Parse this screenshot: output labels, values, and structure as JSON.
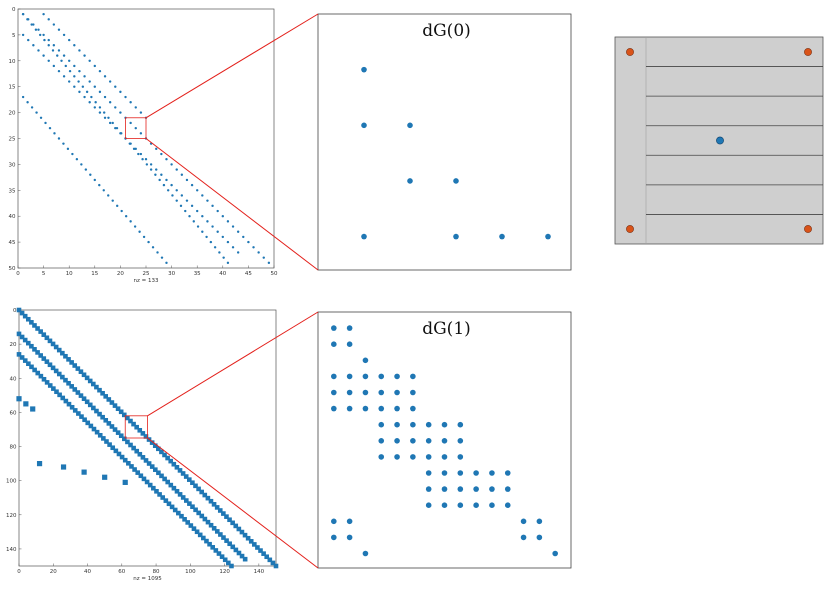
{
  "colors": {
    "marker": "#1f77b4",
    "connector": "#e3201b",
    "element_fill": "#cfcfcf",
    "element_node": "#d95319"
  },
  "spy_plots": [
    {
      "xlabel": "nz = 133",
      "xlim": [
        0,
        50
      ],
      "ylim": [
        0,
        50
      ],
      "x_ticks": [
        "0",
        "5",
        "10",
        "15",
        "20",
        "25",
        "30",
        "35",
        "40",
        "45",
        "50"
      ],
      "y_ticks": [
        "0",
        "5",
        "10",
        "15",
        "20",
        "25",
        "30",
        "35",
        "40",
        "45",
        "50"
      ],
      "zoom_box": [
        21,
        21,
        25,
        25
      ],
      "bands": [
        {
          "x0": 1,
          "x1": 41,
          "y0": 1,
          "y1": 49
        },
        {
          "x0": 1,
          "x1": 49,
          "y0": 1,
          "y1": 49
        },
        {
          "x0": 1,
          "x1": 43,
          "y0": 5,
          "y1": 47
        },
        {
          "x0": 1,
          "x1": 29,
          "y0": 17,
          "y1": 49
        },
        {
          "x0": 5,
          "x1": 25,
          "y0": 1,
          "y1": 21
        }
      ],
      "band_marker": 1.2
    },
    {
      "xlabel": "nz = 1095",
      "xlim": [
        0,
        150
      ],
      "ylim": [
        0,
        150
      ],
      "x_ticks": [
        "0",
        "20",
        "40",
        "60",
        "80",
        "100",
        "120",
        "140"
      ],
      "y_ticks": [
        "0",
        "20",
        "40",
        "60",
        "80",
        "100",
        "120",
        "140"
      ],
      "zoom_box": [
        62,
        62,
        75,
        75
      ],
      "bands": [
        {
          "x0": 0,
          "x1": 150,
          "y0": 0,
          "y1": 150
        },
        {
          "x0": 0,
          "x1": 132,
          "y0": 14,
          "y1": 146
        },
        {
          "x0": 0,
          "x1": 124,
          "y0": 26,
          "y1": 150
        }
      ],
      "band_marker": 2.3,
      "blocks": [
        [
          0,
          52
        ],
        [
          4,
          55
        ],
        [
          8,
          58
        ],
        [
          12,
          90
        ],
        [
          26,
          92
        ],
        [
          38,
          95
        ],
        [
          50,
          98
        ],
        [
          62,
          101
        ]
      ]
    }
  ],
  "zoom_plots": [
    {
      "title": "dG(0)",
      "points": [
        [
          1,
          1
        ],
        [
          1,
          2
        ],
        [
          1,
          4
        ],
        [
          2,
          2
        ],
        [
          2,
          3
        ],
        [
          3,
          3
        ],
        [
          3,
          4
        ],
        [
          4,
          4
        ],
        [
          5,
          4
        ]
      ],
      "xlim": [
        0,
        5.5
      ],
      "ylim": [
        0,
        4.6
      ]
    },
    {
      "title": "dG(1)",
      "points": [
        [
          1,
          1
        ],
        [
          2,
          1
        ],
        [
          1,
          2
        ],
        [
          2,
          2
        ],
        [
          3,
          3
        ],
        [
          1,
          4
        ],
        [
          2,
          4
        ],
        [
          3,
          4
        ],
        [
          4,
          4
        ],
        [
          5,
          4
        ],
        [
          6,
          4
        ],
        [
          1,
          5
        ],
        [
          2,
          5
        ],
        [
          3,
          5
        ],
        [
          4,
          5
        ],
        [
          5,
          5
        ],
        [
          6,
          5
        ],
        [
          1,
          6
        ],
        [
          2,
          6
        ],
        [
          3,
          6
        ],
        [
          4,
          6
        ],
        [
          5,
          6
        ],
        [
          6,
          6
        ],
        [
          4,
          7
        ],
        [
          5,
          7
        ],
        [
          6,
          7
        ],
        [
          7,
          7
        ],
        [
          8,
          7
        ],
        [
          9,
          7
        ],
        [
          4,
          8
        ],
        [
          5,
          8
        ],
        [
          6,
          8
        ],
        [
          7,
          8
        ],
        [
          8,
          8
        ],
        [
          9,
          8
        ],
        [
          4,
          9
        ],
        [
          5,
          9
        ],
        [
          6,
          9
        ],
        [
          7,
          9
        ],
        [
          8,
          9
        ],
        [
          9,
          9
        ],
        [
          7,
          10
        ],
        [
          8,
          10
        ],
        [
          9,
          10
        ],
        [
          10,
          10
        ],
        [
          11,
          10
        ],
        [
          12,
          10
        ],
        [
          7,
          11
        ],
        [
          8,
          11
        ],
        [
          9,
          11
        ],
        [
          10,
          11
        ],
        [
          11,
          11
        ],
        [
          12,
          11
        ],
        [
          7,
          12
        ],
        [
          8,
          12
        ],
        [
          9,
          12
        ],
        [
          10,
          12
        ],
        [
          11,
          12
        ],
        [
          12,
          12
        ],
        [
          1,
          13
        ],
        [
          2,
          13
        ],
        [
          13,
          13
        ],
        [
          14,
          13
        ],
        [
          1,
          14
        ],
        [
          2,
          14
        ],
        [
          13,
          14
        ],
        [
          14,
          14
        ],
        [
          3,
          15
        ],
        [
          15,
          15
        ]
      ],
      "xlim": [
        0,
        16
      ],
      "ylim": [
        0,
        15.9
      ]
    }
  ],
  "element_diagram": {
    "slabs": 7,
    "corner_nodes": [
      [
        0,
        0
      ],
      [
        1,
        0
      ],
      [
        0,
        1
      ],
      [
        1,
        1
      ]
    ],
    "center_node": [
      0.5,
      0.5
    ]
  }
}
